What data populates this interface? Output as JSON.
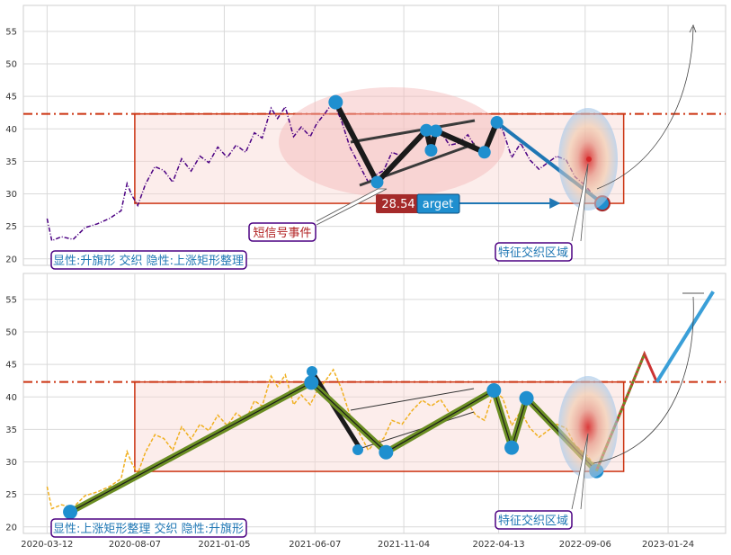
{
  "chart_data": [
    {
      "type": "line",
      "panel": "top",
      "ylim": [
        19,
        59
      ],
      "yticks": [
        20,
        25,
        30,
        35,
        40,
        45,
        50,
        55
      ],
      "xticks": [
        "2020-03-12",
        "2020-08-07",
        "2021-01-05",
        "2021-06-07",
        "2021-11-04",
        "2022-04-13",
        "2022-09-06",
        "2023-01-24"
      ],
      "xlim": [
        "2020-02-01",
        "2023-05-01"
      ],
      "grid": true,
      "line_color": "#4b0082",
      "resistance_level": 42.3,
      "box": {
        "x": [
          "2020-08-07",
          "2022-11-10"
        ],
        "y": [
          28.54,
          42.3
        ]
      },
      "price_series": [
        [
          "2020-03-12",
          26.2
        ],
        [
          "2020-03-20",
          22.8
        ],
        [
          "2020-04-05",
          23.4
        ],
        [
          "2020-04-25",
          23.0
        ],
        [
          "2020-05-15",
          24.8
        ],
        [
          "2020-06-05",
          25.4
        ],
        [
          "2020-06-25",
          26.2
        ],
        [
          "2020-07-15",
          27.4
        ],
        [
          "2020-07-25",
          31.6
        ],
        [
          "2020-08-02",
          29.8
        ],
        [
          "2020-08-12",
          28.2
        ],
        [
          "2020-08-25",
          31.5
        ],
        [
          "2020-09-10",
          34.2
        ],
        [
          "2020-09-25",
          33.6
        ],
        [
          "2020-10-10",
          31.8
        ],
        [
          "2020-10-25",
          35.4
        ],
        [
          "2020-11-10",
          33.5
        ],
        [
          "2020-11-25",
          35.8
        ],
        [
          "2020-12-10",
          34.8
        ],
        [
          "2020-12-25",
          37.2
        ],
        [
          "2021-01-10",
          35.6
        ],
        [
          "2021-01-25",
          37.5
        ],
        [
          "2021-02-10",
          36.4
        ],
        [
          "2021-02-25",
          39.4
        ],
        [
          "2021-03-10",
          38.6
        ],
        [
          "2021-03-25",
          43.2
        ],
        [
          "2021-04-05",
          41.6
        ],
        [
          "2021-04-18",
          43.4
        ],
        [
          "2021-05-02",
          38.8
        ],
        [
          "2021-05-15",
          40.3
        ],
        [
          "2021-05-30",
          38.8
        ],
        [
          "2021-06-10",
          40.8
        ],
        [
          "2021-06-25",
          42.5
        ],
        [
          "2021-07-08",
          44.2
        ],
        [
          "2021-07-22",
          41.2
        ],
        [
          "2021-08-05",
          37.2
        ],
        [
          "2021-08-20",
          34.6
        ],
        [
          "2021-09-05",
          31.8
        ],
        [
          "2021-09-15",
          32.8
        ],
        [
          "2021-10-01",
          33.6
        ],
        [
          "2021-10-15",
          36.4
        ],
        [
          "2021-11-01",
          35.8
        ],
        [
          "2021-11-18",
          37.9
        ],
        [
          "2021-12-05",
          39.5
        ],
        [
          "2021-12-20",
          38.6
        ],
        [
          "2022-01-05",
          39.6
        ],
        [
          "2022-01-20",
          37.5
        ],
        [
          "2022-02-05",
          37.8
        ],
        [
          "2022-02-20",
          39.1
        ],
        [
          "2022-03-05",
          37.2
        ],
        [
          "2022-03-20",
          36.4
        ],
        [
          "2022-04-05",
          41.0
        ],
        [
          "2022-04-20",
          39.8
        ],
        [
          "2022-05-05",
          35.6
        ],
        [
          "2022-05-20",
          37.8
        ],
        [
          "2022-06-05",
          35.2
        ],
        [
          "2022-06-20",
          33.8
        ],
        [
          "2022-07-05",
          34.8
        ],
        [
          "2022-07-20",
          35.8
        ],
        [
          "2022-08-05",
          35.2
        ],
        [
          "2022-08-20",
          32.6
        ],
        [
          "2022-09-05",
          31.4
        ],
        [
          "2022-09-20",
          29.8
        ],
        [
          "2022-10-05",
          28.6
        ]
      ],
      "pivots": [
        [
          "2021-07-12",
          44.1
        ],
        [
          "2021-09-20",
          31.8
        ],
        [
          "2021-12-12",
          39.8
        ],
        [
          "2021-12-20",
          36.7
        ],
        [
          "2021-12-28",
          39.7
        ],
        [
          "2022-03-20",
          36.4
        ],
        [
          "2022-04-10",
          41.0
        ],
        [
          "2022-10-05",
          28.54
        ]
      ],
      "target_value": "28.54",
      "target_label": "arget",
      "annotations": [
        {
          "text": "短信号事件",
          "color": "#b22222"
        },
        {
          "text": "特征交织区域",
          "color": "#1f77b4"
        },
        {
          "text": "显性:升旗形 交织 隐性:上涨矩形整理",
          "color": "#1f77b4"
        }
      ]
    },
    {
      "type": "line",
      "panel": "bottom",
      "ylim": [
        19,
        59
      ],
      "yticks": [
        20,
        25,
        30,
        35,
        40,
        45,
        50,
        55
      ],
      "xticks": [
        "2020-03-12",
        "2020-08-07",
        "2021-01-05",
        "2021-06-07",
        "2021-11-04",
        "2022-04-13",
        "2022-09-06",
        "2023-01-24"
      ],
      "xlim": [
        "2020-02-01",
        "2023-05-01"
      ],
      "grid": true,
      "line_color": "#f0b020",
      "resistance_level": 42.3,
      "box": {
        "x": [
          "2020-08-07",
          "2022-11-10"
        ],
        "y": [
          28.54,
          42.3
        ]
      },
      "pattern_path": [
        [
          "2020-04-20",
          22.3
        ],
        [
          "2021-06-01",
          42.2
        ],
        [
          "2021-10-05",
          31.5
        ],
        [
          "2022-04-05",
          41.0
        ],
        [
          "2022-05-05",
          32.2
        ],
        [
          "2022-05-30",
          39.8
        ],
        [
          "2022-09-25",
          28.6
        ]
      ],
      "projection": [
        [
          "2022-09-25",
          28.6
        ],
        [
          "2022-12-15",
          46.6
        ],
        [
          "2023-01-05",
          42.3
        ],
        [
          "2023-04-10",
          56.2
        ]
      ],
      "annotations": [
        {
          "text": "特征交织区域",
          "color": "#1f77b4"
        },
        {
          "text": "显性:上涨矩形整理 交织 隐性:升旗形",
          "color": "#1f77b4"
        }
      ]
    }
  ]
}
